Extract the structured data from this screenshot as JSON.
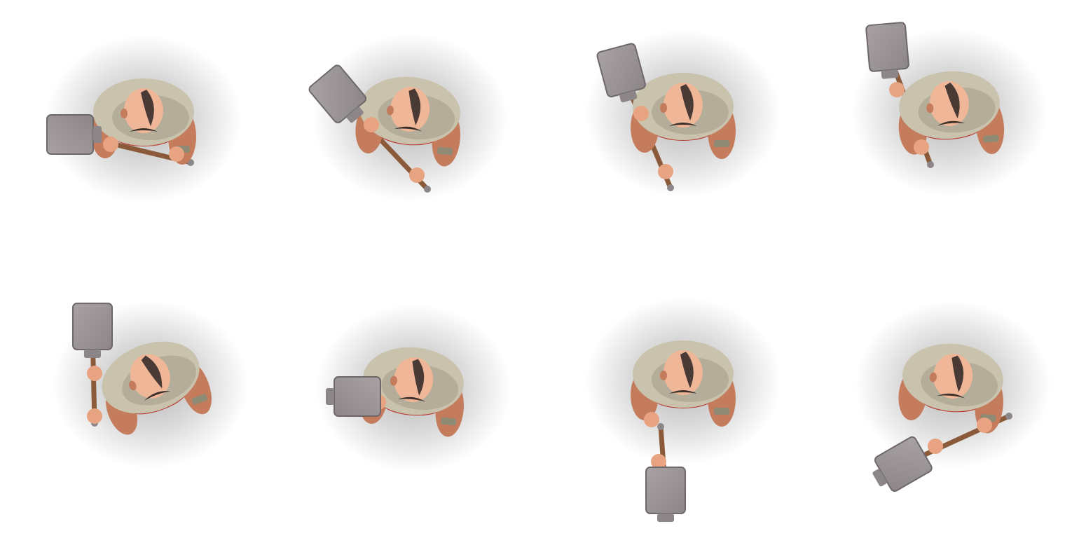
{
  "sprite_sheet": {
    "background": "#ffffff",
    "rows": 2,
    "columns": 4,
    "character": "bald-barbarian-with-warhammer",
    "palette": {
      "skin": "#e8a482",
      "skin_shade": "#c47c5d",
      "scalp": "#efb698",
      "hair_stripe": "#4a3a36",
      "mustache": "#3b2f2c",
      "fur": "#c9c2ad",
      "fur_shade": "#9e9785",
      "belt": "#b83a32",
      "wrist_wrap": "#8f8a74",
      "handle": "#8a5a3a",
      "hammer_head": "#8c8688",
      "hammer_head_light": "#a8a2a4",
      "shadow": "#000000"
    },
    "frames": [
      {
        "index": 1,
        "pose": "hammer-held-left-low"
      },
      {
        "index": 2,
        "pose": "hammer-raised-up-left"
      },
      {
        "index": 3,
        "pose": "hammer-raised-up"
      },
      {
        "index": 4,
        "pose": "hammer-raised-high-left"
      },
      {
        "index": 5,
        "pose": "hammer-held-vertical-left"
      },
      {
        "index": 6,
        "pose": "hammer-swung-forward-left"
      },
      {
        "index": 7,
        "pose": "hammer-slammed-down"
      },
      {
        "index": 8,
        "pose": "hammer-held-right-low"
      }
    ]
  }
}
